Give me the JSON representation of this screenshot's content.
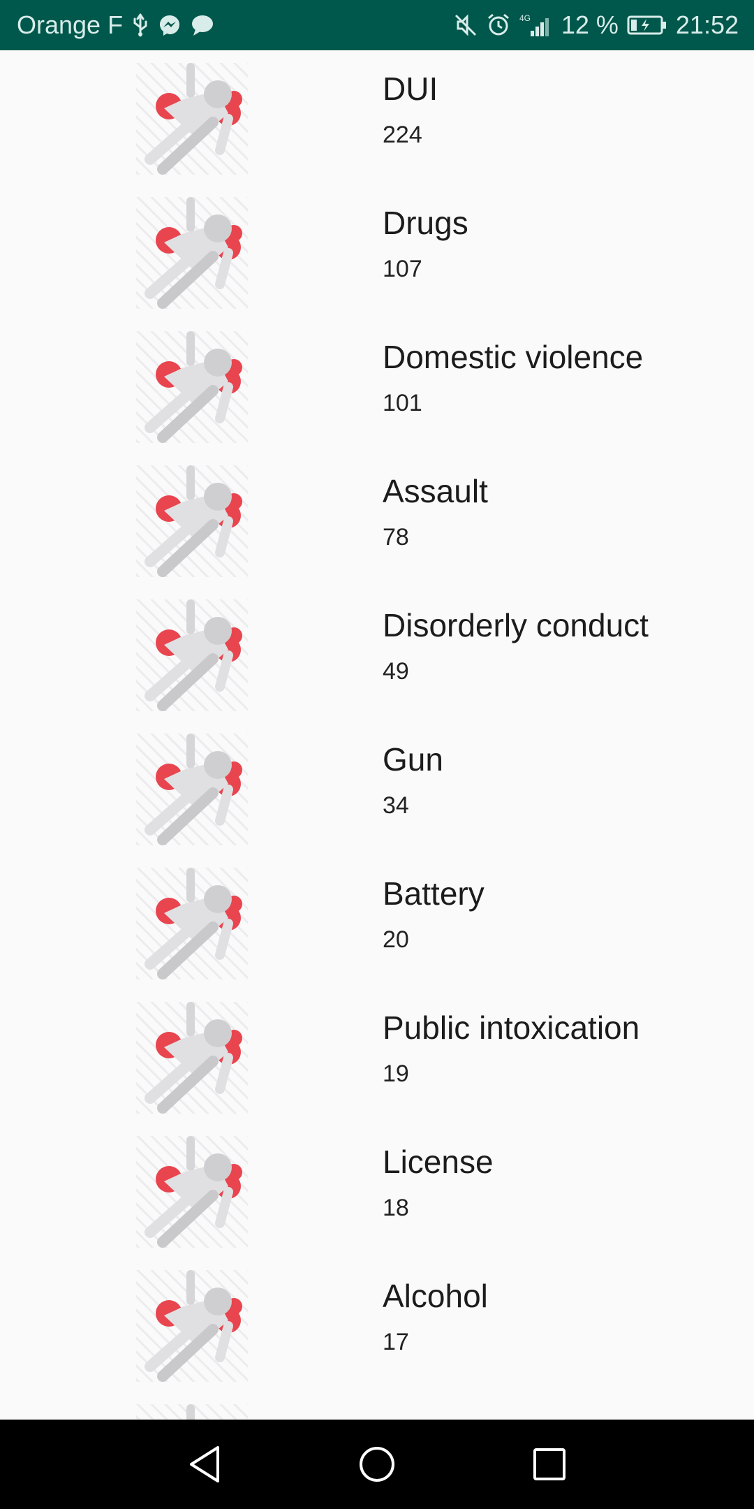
{
  "status_bar": {
    "carrier": "Orange F",
    "network": "4G",
    "battery_percent": "12 %",
    "time": "21:52",
    "icons": [
      "usb-icon",
      "messenger-icon",
      "chat-icon",
      "mute-icon",
      "alarm-icon",
      "signal-icon",
      "battery-charging-icon"
    ]
  },
  "list": {
    "items": [
      {
        "title": "DUI",
        "count": "224",
        "icon": "injured-person-icon"
      },
      {
        "title": "Drugs",
        "count": "107",
        "icon": "injured-person-icon"
      },
      {
        "title": "Domestic violence",
        "count": "101",
        "icon": "injured-person-icon"
      },
      {
        "title": "Assault",
        "count": "78",
        "icon": "injured-person-icon"
      },
      {
        "title": "Disorderly conduct",
        "count": "49",
        "icon": "injured-person-icon"
      },
      {
        "title": "Gun",
        "count": "34",
        "icon": "injured-person-icon"
      },
      {
        "title": "Battery",
        "count": "20",
        "icon": "injured-person-icon"
      },
      {
        "title": "Public intoxication",
        "count": "19",
        "icon": "injured-person-icon"
      },
      {
        "title": "License",
        "count": "18",
        "icon": "injured-person-icon"
      },
      {
        "title": "Alcohol",
        "count": "17",
        "icon": "injured-person-icon"
      },
      {
        "title": "",
        "count": "",
        "icon": "injured-person-icon"
      }
    ]
  },
  "nav_bar": {
    "buttons": [
      "back-icon",
      "home-icon",
      "recents-icon"
    ]
  },
  "colors": {
    "status_bar": "#00574b",
    "background": "#fafafa",
    "accent_red": "#e8454f",
    "figure_gray": "#d9d9db"
  }
}
